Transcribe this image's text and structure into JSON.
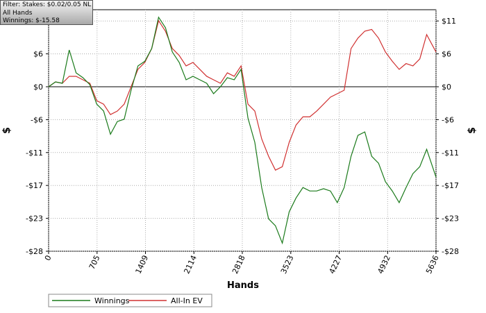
{
  "chart_data": {
    "type": "line",
    "filter_lines": [
      "Filter: Stakes: $0.02/0.05 NL",
      "All Hands",
      "Winnings: $-15.58"
    ],
    "xlabel": "Hands",
    "ylabel": "$",
    "x": [
      0,
      100,
      200,
      300,
      400,
      500,
      600,
      700,
      800,
      900,
      1000,
      1100,
      1200,
      1300,
      1400,
      1500,
      1600,
      1700,
      1800,
      1900,
      2000,
      2100,
      2200,
      2300,
      2400,
      2500,
      2600,
      2700,
      2800,
      2900,
      3000,
      3100,
      3200,
      3300,
      3400,
      3500,
      3600,
      3700,
      3800,
      3900,
      4000,
      4100,
      4200,
      4300,
      4400,
      4500,
      4600,
      4700,
      4800,
      4900,
      5000,
      5100,
      5200,
      5300,
      5400,
      5500,
      5636
    ],
    "series": [
      {
        "name": "Winnings",
        "color": "#1a7a1a",
        "values": [
          0,
          0.84,
          0.6,
          6.35,
          2.4,
          1.56,
          0.36,
          -3.0,
          -4.19,
          -8.2,
          -6.0,
          -5.6,
          -0.6,
          3.6,
          4.4,
          6.6,
          12.0,
          10.2,
          6.0,
          4.2,
          1.2,
          1.8,
          1.2,
          0.6,
          -1.2,
          0,
          1.56,
          1.2,
          3.0,
          -5.4,
          -9.6,
          -17.4,
          -22.8,
          -24.0,
          -27.0,
          -21.6,
          -19.2,
          -17.4,
          -18.0,
          -18.0,
          -17.6,
          -18.0,
          -20.0,
          -17.4,
          -12.0,
          -8.4,
          -7.8,
          -12.0,
          -13.2,
          -16.4,
          -18.0,
          -20.0,
          -17.4,
          -15.0,
          -13.8,
          -10.8,
          -15.6
        ]
      },
      {
        "name": "All-In EV",
        "color": "#d03030",
        "values": [
          0,
          0.84,
          0.6,
          1.8,
          1.8,
          1.2,
          0.6,
          -2.4,
          -3.0,
          -4.8,
          -4.2,
          -3.0,
          0,
          3.0,
          4.2,
          6.6,
          11.4,
          9.6,
          6.6,
          5.4,
          3.6,
          4.2,
          3.0,
          1.8,
          1.2,
          0.6,
          2.4,
          1.8,
          3.6,
          -3.0,
          -4.2,
          -9.0,
          -12.0,
          -14.4,
          -13.8,
          -9.6,
          -6.6,
          -5.2,
          -5.2,
          -4.2,
          -3.0,
          -1.8,
          -1.2,
          -0.6,
          6.6,
          8.4,
          9.6,
          9.9,
          8.4,
          6.0,
          4.4,
          3.0,
          4.0,
          3.6,
          4.8,
          9.0,
          6.0
        ]
      }
    ],
    "xlim": [
      0,
      5636
    ],
    "xticks": [
      0,
      705,
      1409,
      2114,
      2818,
      3523,
      4227,
      4932,
      5636
    ],
    "ylim": [
      -28.4,
      13.3
    ],
    "yticks": [
      {
        "value": -28.4,
        "label": "-$28"
      },
      {
        "value": -22.72,
        "label": "-$23"
      },
      {
        "value": -17.04,
        "label": "-$17"
      },
      {
        "value": -11.36,
        "label": "-$11"
      },
      {
        "value": -5.68,
        "label": "-$6"
      },
      {
        "value": 0,
        "label": "$0"
      },
      {
        "value": 5.68,
        "label": "$6"
      },
      {
        "value": 11.36,
        "label": "$11"
      }
    ],
    "grid": true
  }
}
